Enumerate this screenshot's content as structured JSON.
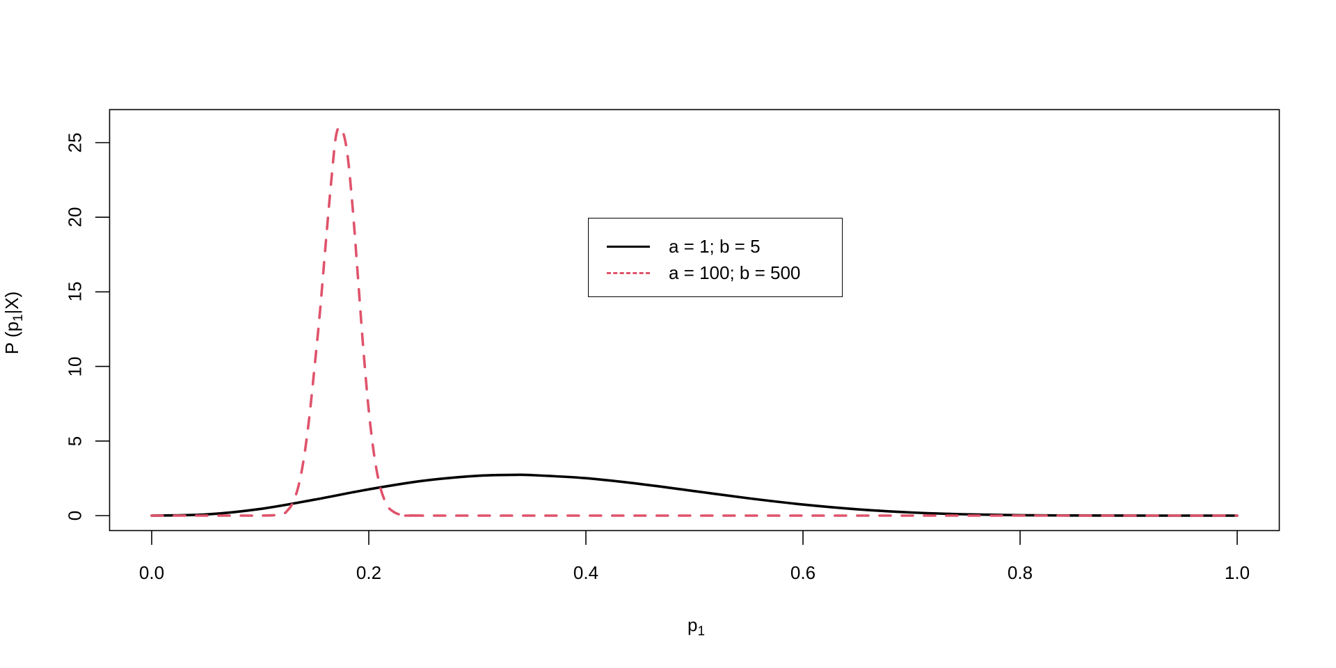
{
  "chart_data": {
    "type": "line",
    "title": "",
    "xlabel": "p1",
    "xlabel_main": "p",
    "xlabel_sub": "1",
    "ylabel": "P (p1|X)",
    "ylabel_prefix": "P (p",
    "ylabel_sub": "1",
    "ylabel_suffix": "|X)",
    "xlim": [
      0.0,
      1.0
    ],
    "ylim": [
      0,
      26.2
    ],
    "grid": false,
    "legend_position": "inside-center-top",
    "x_ticks": [
      "0.0",
      "0.2",
      "0.4",
      "0.6",
      "0.8",
      "1.0"
    ],
    "x_tick_values": [
      0,
      0.2,
      0.4,
      0.6,
      0.8,
      1.0
    ],
    "y_ticks": [
      "0",
      "5",
      "10",
      "15",
      "20",
      "25"
    ],
    "y_tick_values": [
      0,
      5,
      10,
      15,
      20,
      25
    ],
    "series": [
      {
        "name": "a = 1; b = 5",
        "color": "#000000",
        "style": "solid",
        "x": [
          0,
          0.05,
          0.1,
          0.15,
          0.2,
          0.25,
          0.3,
          0.333,
          0.35,
          0.4,
          0.45,
          0.5,
          0.55,
          0.6,
          0.65,
          0.7,
          0.75,
          0.8,
          0.85,
          0.9,
          0.95,
          1.0
        ],
        "y": [
          0,
          0.077,
          0.446,
          1.069,
          1.762,
          2.336,
          2.668,
          2.731,
          2.716,
          2.508,
          2.119,
          1.641,
          1.16,
          0.743,
          0.424,
          0.21,
          0.087,
          0.028,
          0.007,
          0.001,
          0,
          0
        ]
      },
      {
        "name": "a = 100; b = 500",
        "color": "#DF536B",
        "style": "dashed",
        "x": [
          0,
          0.1,
          0.12,
          0.125,
          0.13,
          0.135,
          0.14,
          0.145,
          0.15,
          0.155,
          0.16,
          0.165,
          0.17,
          0.175,
          0.18,
          0.185,
          0.19,
          0.195,
          0.2,
          0.205,
          0.21,
          0.215,
          0.22,
          0.23,
          0.25,
          0.3,
          1.0
        ],
        "y": [
          0,
          0,
          0.12,
          0.34,
          0.86,
          1.92,
          3.75,
          6.47,
          9.93,
          13.64,
          17.95,
          22.09,
          25.53,
          25.88,
          24.39,
          20.75,
          15.99,
          11.15,
          7.04,
          4.02,
          2.07,
          0.96,
          0.4,
          0.05,
          0,
          0,
          0
        ]
      }
    ]
  },
  "legend": {
    "items": [
      {
        "label": "a = 1; b = 5",
        "color": "#000000",
        "style": "solid"
      },
      {
        "label": "a = 100; b = 500",
        "color": "#DF536B",
        "style": "dashed"
      }
    ]
  }
}
